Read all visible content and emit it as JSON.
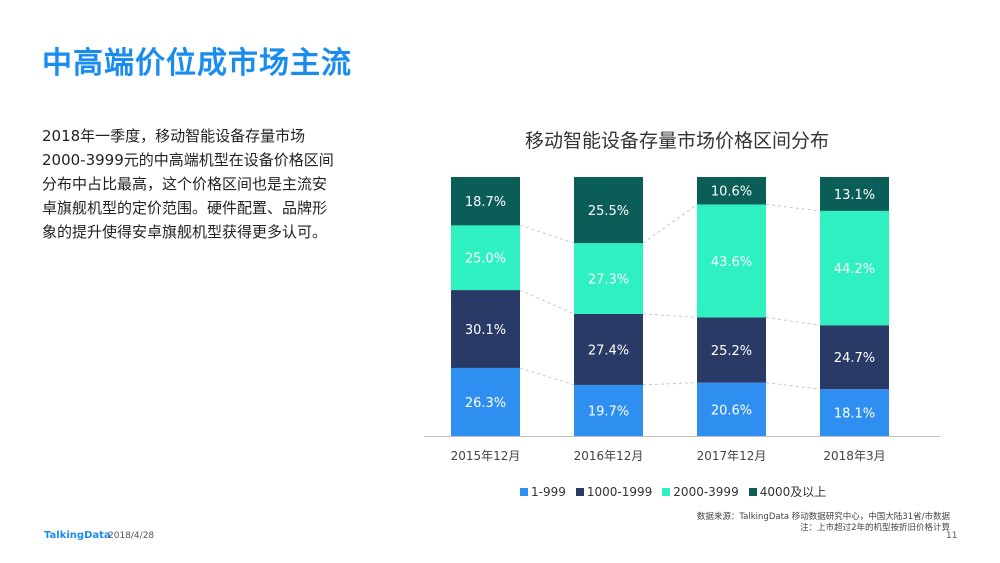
{
  "page": {
    "title": "中高端价位成市场主流",
    "body_lines": [
      "2018年一季度，移动智能设备存量市场",
      "2000-3999元的中高端机型在设备价格区间",
      "分布中占比最高，这个价格区间也是主流安",
      "卓旗舰机型的定价范围。硬件配置、品牌形",
      "象的提升使得安卓旗舰机型获得更多认可。"
    ],
    "source_line1": "数据来源：TalkingData 移动数据研究中心，中国大陆31省/市数据",
    "source_line2": "注：上市超过2年的机型按折旧价格计算",
    "logo": "TalkingData",
    "date": "2018/4/28",
    "page_number": "11"
  },
  "chart_data": {
    "type": "bar",
    "stacked": true,
    "normalized_percent": true,
    "title": "移动智能设备存量市场价格区间分布",
    "categories": [
      "2015年12月",
      "2016年12月",
      "2017年12月",
      "2018年3月"
    ],
    "series": [
      {
        "name": "1-999",
        "color": "#2f8ff0",
        "values": [
          26.3,
          19.7,
          20.6,
          18.1
        ],
        "labels": [
          "26.3%",
          "19.7%",
          "20.6%",
          "18.1%"
        ]
      },
      {
        "name": "1000-1999",
        "color": "#2a3a66",
        "values": [
          30.1,
          27.4,
          25.2,
          24.7
        ],
        "labels": [
          "30.1%",
          "27.4%",
          "25.2%",
          "24.7%"
        ]
      },
      {
        "name": "2000-3999",
        "color": "#2ef0c0",
        "values": [
          25.0,
          27.3,
          43.6,
          44.2
        ],
        "labels": [
          "25.0%",
          "27.3%",
          "43.6%",
          "44.2%"
        ]
      },
      {
        "name": "4000及以上",
        "color": "#0b5e57",
        "values": [
          18.7,
          25.5,
          10.6,
          13.1
        ],
        "labels": [
          "18.7%",
          "25.5%",
          "10.6%",
          "13.1%"
        ]
      }
    ],
    "legend_position": "bottom",
    "grid": false,
    "connector_lines": true
  }
}
